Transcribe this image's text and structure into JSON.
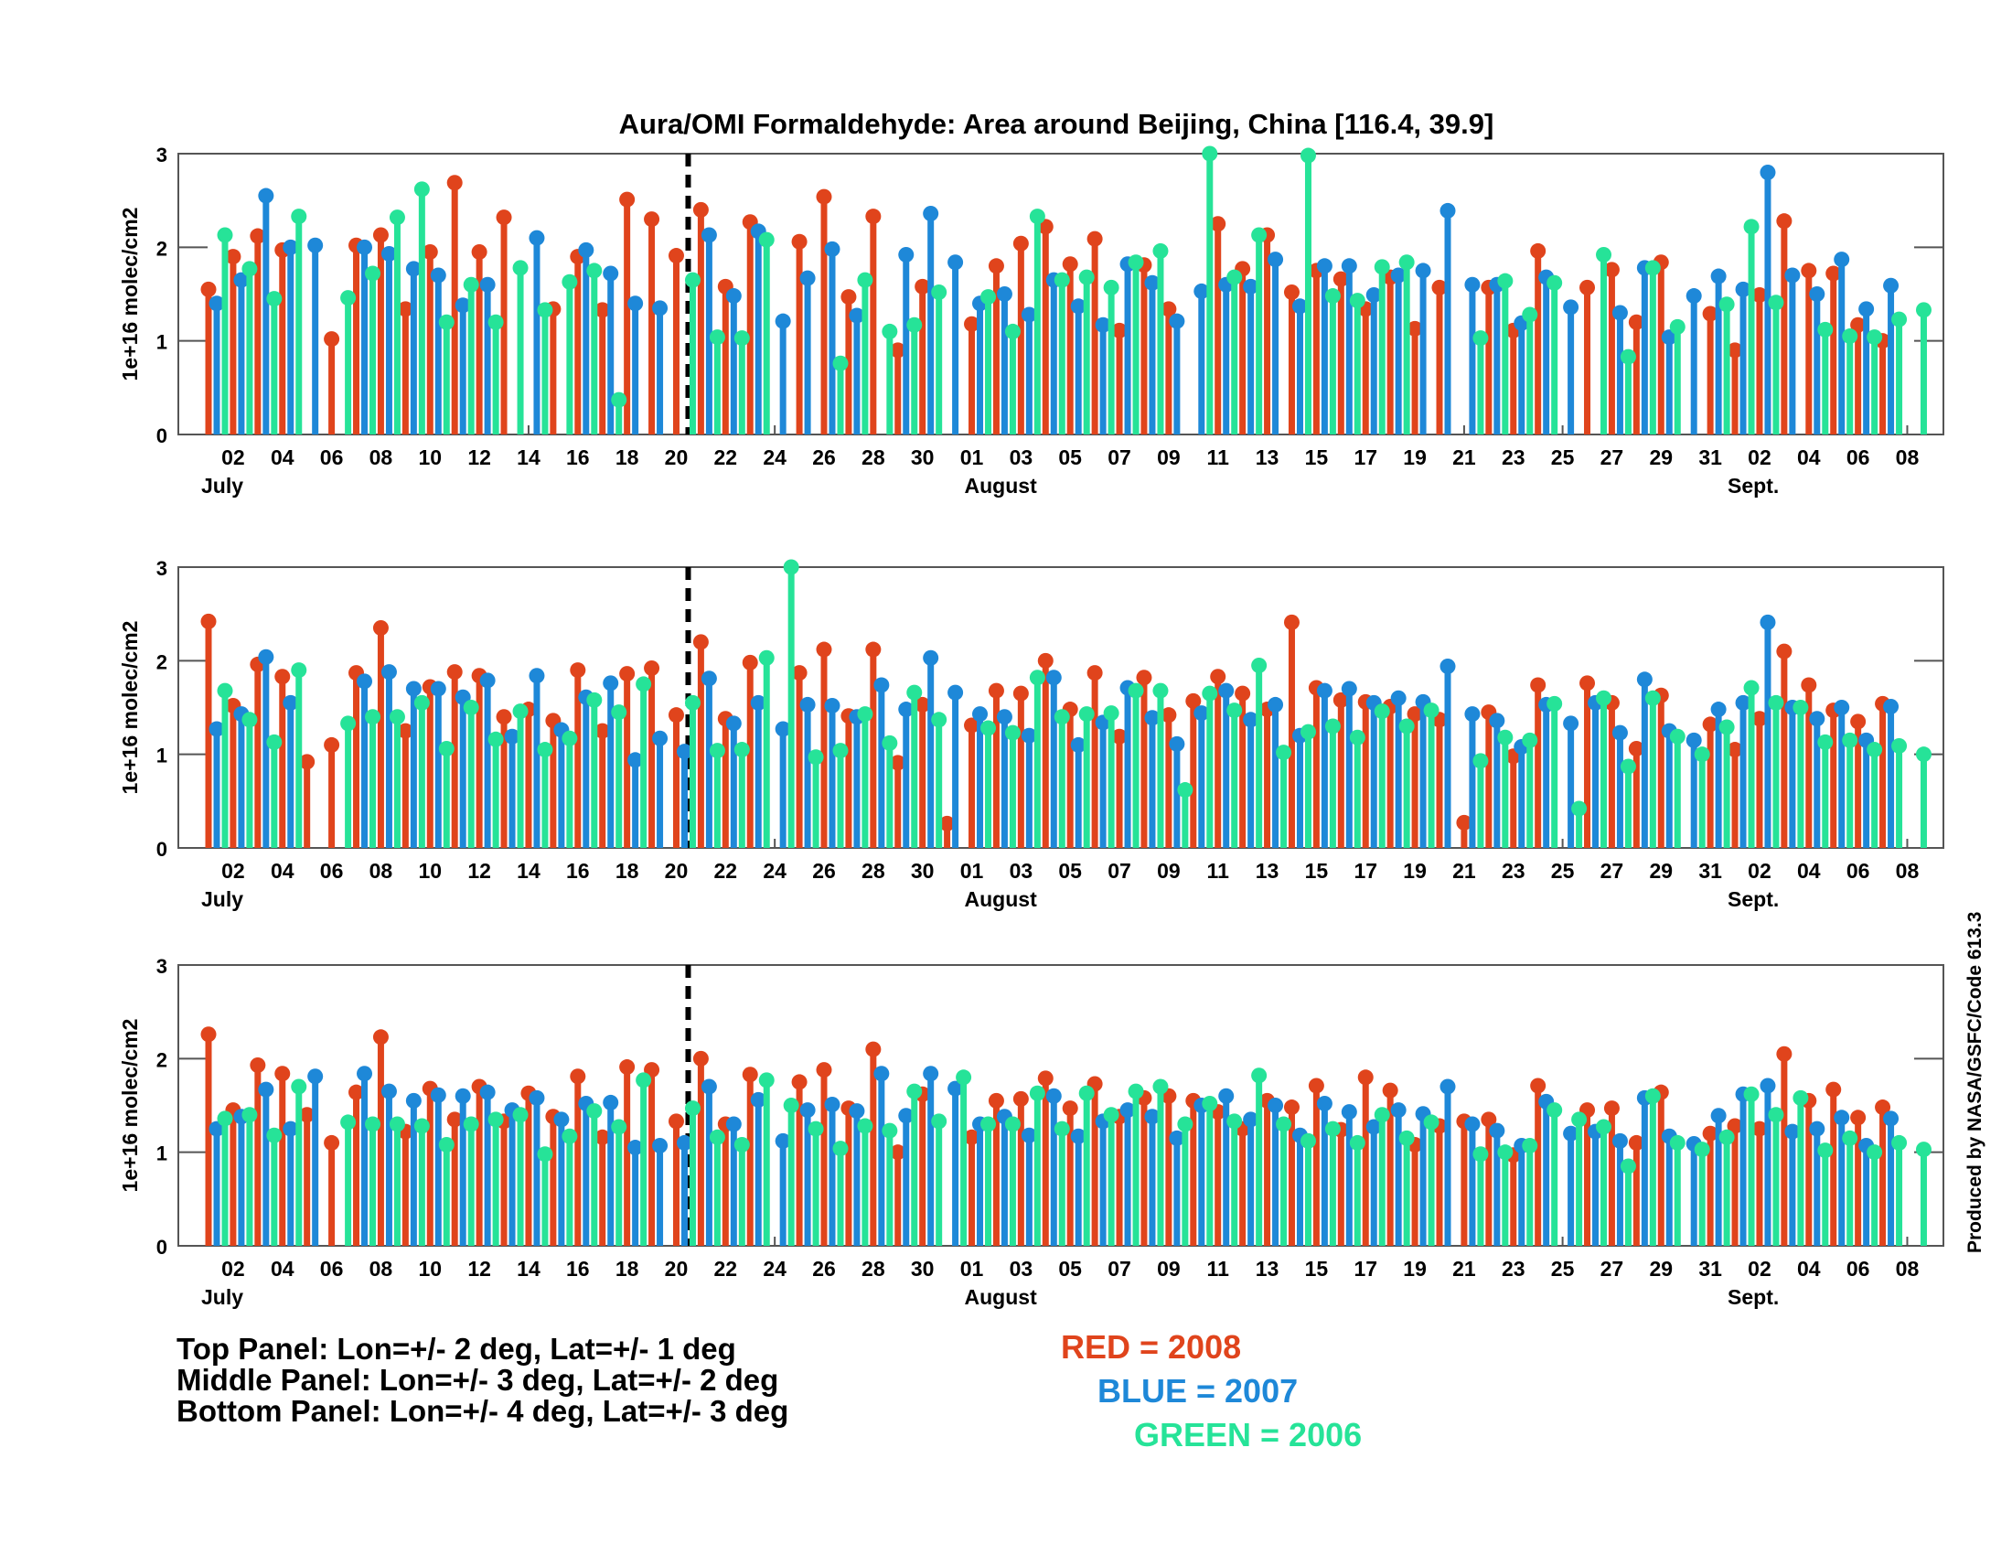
{
  "chart_data": {
    "type": "bar",
    "title": "Aura/OMI Formaldehyde: Area around Beijing, China [116.4, 39.9]",
    "ylabel": "1e+16 molec/cm2",
    "ylim": [
      0,
      3
    ],
    "yticks": [
      "0",
      "1",
      "2",
      "3"
    ],
    "xtick_labels": [
      "02",
      "04",
      "06",
      "08",
      "10",
      "12",
      "14",
      "16",
      "18",
      "20",
      "22",
      "24",
      "26",
      "28",
      "30",
      "01",
      "03",
      "05",
      "07",
      "09",
      "11",
      "13",
      "15",
      "17",
      "19",
      "21",
      "23",
      "25",
      "27",
      "29",
      "31",
      "02",
      "04",
      "06",
      "08"
    ],
    "month_labels": [
      "July",
      "August",
      "Sept."
    ],
    "marker_day": 20,
    "days": [
      "Jul 01",
      "Jul 02",
      "Jul 03",
      "Jul 04",
      "Jul 05",
      "Jul 06",
      "Jul 07",
      "Jul 08",
      "Jul 09",
      "Jul 10",
      "Jul 11",
      "Jul 12",
      "Jul 13",
      "Jul 14",
      "Jul 15",
      "Jul 16",
      "Jul 17",
      "Jul 18",
      "Jul 19",
      "Jul 20",
      "Jul 21",
      "Jul 22",
      "Jul 23",
      "Jul 24",
      "Jul 25",
      "Jul 26",
      "Jul 27",
      "Jul 28",
      "Jul 29",
      "Jul 30",
      "Jul 31",
      "Aug 01",
      "Aug 02",
      "Aug 03",
      "Aug 04",
      "Aug 05",
      "Aug 06",
      "Aug 07",
      "Aug 08",
      "Aug 09",
      "Aug 10",
      "Aug 11",
      "Aug 12",
      "Aug 13",
      "Aug 14",
      "Aug 15",
      "Aug 16",
      "Aug 17",
      "Aug 18",
      "Aug 19",
      "Aug 20",
      "Aug 21",
      "Aug 22",
      "Aug 23",
      "Aug 24",
      "Aug 25",
      "Aug 26",
      "Aug 27",
      "Aug 28",
      "Aug 29",
      "Aug 30",
      "Aug 31",
      "Sep 01",
      "Sep 02",
      "Sep 03",
      "Sep 04",
      "Sep 05",
      "Sep 06",
      "Sep 07",
      "Sep 08"
    ],
    "panels": [
      {
        "name": "Top Panel",
        "series": [
          {
            "name": "2008",
            "color": "#e0441c",
            "values": [
              1.55,
              1.9,
              2.12,
              1.97,
              null,
              1.02,
              2.02,
              2.13,
              1.34,
              1.95,
              2.69,
              1.95,
              2.32,
              null,
              1.34,
              1.9,
              1.33,
              2.51,
              2.3,
              1.91,
              2.4,
              1.58,
              2.27,
              null,
              2.06,
              2.54,
              1.47,
              2.33,
              0.9,
              1.58,
              null,
              1.18,
              1.8,
              2.04,
              2.22,
              1.82,
              2.09,
              1.11,
              1.81,
              1.34,
              null,
              2.25,
              1.77,
              2.13,
              1.52,
              1.75,
              1.66,
              1.34,
              1.68,
              1.13,
              1.57,
              null,
              1.57,
              1.11,
              1.96,
              null,
              1.57,
              1.76,
              1.2,
              1.84,
              null,
              1.29,
              0.9,
              1.49,
              2.28,
              1.75,
              1.72,
              1.17,
              1.0,
              null
            ]
          },
          {
            "name": "2007",
            "color": "#1e88d8",
            "values": [
              1.4,
              1.65,
              2.55,
              2.0,
              2.02,
              null,
              2.0,
              1.93,
              1.77,
              1.7,
              1.38,
              1.6,
              null,
              2.1,
              null,
              1.97,
              1.72,
              1.4,
              1.35,
              null,
              2.13,
              1.48,
              2.17,
              1.21,
              1.67,
              1.98,
              1.27,
              null,
              1.92,
              2.36,
              1.84,
              1.4,
              1.5,
              1.28,
              1.65,
              1.37,
              1.17,
              1.82,
              1.62,
              1.21,
              1.53,
              1.6,
              1.58,
              1.87,
              1.37,
              1.8,
              1.8,
              1.49,
              1.7,
              1.75,
              2.39,
              1.6,
              1.6,
              1.19,
              1.68,
              1.36,
              null,
              1.3,
              1.78,
              1.04,
              1.48,
              1.69,
              1.55,
              2.8,
              1.7,
              1.5,
              1.87,
              1.34,
              1.59,
              null
            ]
          },
          {
            "name": "2006",
            "color": "#26e398",
            "values": [
              2.13,
              1.77,
              1.45,
              2.33,
              null,
              1.46,
              1.72,
              2.32,
              2.62,
              1.2,
              1.6,
              1.2,
              1.78,
              1.33,
              1.63,
              1.75,
              0.37,
              null,
              null,
              1.65,
              1.04,
              1.03,
              2.08,
              null,
              null,
              0.76,
              1.65,
              1.1,
              1.17,
              1.52,
              null,
              1.47,
              1.1,
              2.33,
              1.65,
              1.68,
              1.57,
              1.84,
              1.96,
              null,
              3.0,
              1.68,
              2.13,
              null,
              2.98,
              1.48,
              1.43,
              1.79,
              1.84,
              null,
              null,
              1.03,
              1.64,
              1.28,
              1.62,
              null,
              1.92,
              0.83,
              1.78,
              1.15,
              null,
              1.39,
              2.22,
              1.41,
              null,
              1.12,
              1.05,
              1.04,
              1.23,
              1.33
            ]
          }
        ]
      },
      {
        "name": "Middle Panel",
        "series": [
          {
            "name": "2008",
            "color": "#e0441c",
            "values": [
              2.42,
              1.52,
              1.96,
              1.83,
              0.92,
              1.1,
              1.87,
              2.35,
              1.25,
              1.72,
              1.88,
              1.84,
              1.4,
              1.48,
              1.36,
              1.9,
              1.25,
              1.86,
              1.92,
              1.42,
              2.2,
              1.38,
              1.98,
              null,
              1.87,
              2.12,
              1.41,
              2.12,
              0.91,
              1.53,
              0.26,
              1.31,
              1.68,
              1.65,
              2.0,
              1.48,
              1.87,
              1.19,
              1.82,
              1.42,
              1.57,
              1.83,
              1.65,
              1.48,
              2.41,
              1.71,
              1.58,
              1.56,
              1.51,
              1.43,
              1.37,
              0.27,
              1.45,
              0.98,
              1.74,
              null,
              1.76,
              1.55,
              1.06,
              1.63,
              null,
              1.32,
              1.05,
              1.38,
              2.1,
              1.74,
              1.47,
              1.35,
              1.54,
              null
            ]
          },
          {
            "name": "2007",
            "color": "#1e88d8",
            "values": [
              1.27,
              1.43,
              2.04,
              1.55,
              null,
              null,
              1.78,
              1.88,
              1.7,
              1.7,
              1.61,
              1.79,
              1.19,
              1.84,
              1.26,
              1.61,
              1.76,
              0.94,
              1.17,
              1.03,
              1.81,
              1.33,
              1.55,
              1.27,
              1.53,
              1.52,
              1.4,
              1.74,
              1.48,
              2.03,
              1.66,
              1.43,
              1.4,
              1.2,
              1.82,
              1.1,
              1.34,
              1.71,
              1.39,
              1.11,
              1.44,
              1.68,
              1.37,
              1.53,
              1.2,
              1.68,
              1.7,
              1.55,
              1.6,
              1.56,
              1.94,
              1.43,
              1.36,
              1.08,
              1.53,
              1.33,
              1.55,
              1.23,
              1.8,
              1.25,
              1.15,
              1.48,
              1.55,
              2.41,
              1.5,
              1.38,
              1.5,
              1.15,
              1.51,
              null
            ]
          },
          {
            "name": "2006",
            "color": "#26e398",
            "values": [
              1.68,
              1.37,
              1.13,
              1.9,
              null,
              1.33,
              1.4,
              1.4,
              1.55,
              1.06,
              1.5,
              1.16,
              1.46,
              1.05,
              1.17,
              1.58,
              1.45,
              1.75,
              null,
              1.55,
              1.04,
              1.05,
              2.03,
              3.0,
              0.97,
              1.04,
              1.43,
              1.12,
              1.66,
              1.37,
              null,
              1.28,
              1.23,
              1.82,
              1.4,
              1.43,
              1.44,
              1.68,
              1.68,
              0.62,
              1.65,
              1.47,
              1.95,
              1.02,
              1.24,
              1.3,
              1.18,
              1.46,
              1.3,
              1.47,
              null,
              0.93,
              1.18,
              1.15,
              1.54,
              0.42,
              1.6,
              0.87,
              1.6,
              1.19,
              1.0,
              1.29,
              1.71,
              1.55,
              1.5,
              1.13,
              1.15,
              1.05,
              1.09,
              1.0
            ]
          }
        ]
      },
      {
        "name": "Bottom Panel",
        "series": [
          {
            "name": "2008",
            "color": "#e0441c",
            "values": [
              2.26,
              1.45,
              1.93,
              1.84,
              1.4,
              1.1,
              1.64,
              2.23,
              1.22,
              1.68,
              1.35,
              1.7,
              1.33,
              1.63,
              1.38,
              1.81,
              1.16,
              1.91,
              1.88,
              1.33,
              2.0,
              1.3,
              1.83,
              null,
              1.75,
              1.88,
              1.47,
              2.1,
              1.0,
              1.62,
              null,
              1.16,
              1.55,
              1.57,
              1.79,
              1.47,
              1.73,
              1.38,
              1.58,
              1.6,
              1.55,
              1.43,
              1.25,
              1.55,
              1.48,
              1.71,
              1.24,
              1.8,
              1.66,
              1.08,
              1.28,
              1.33,
              1.35,
              0.97,
              1.71,
              null,
              1.45,
              1.47,
              1.1,
              1.64,
              null,
              1.2,
              1.28,
              1.25,
              2.05,
              1.55,
              1.67,
              1.37,
              1.48,
              null
            ]
          },
          {
            "name": "2007",
            "color": "#1e88d8",
            "values": [
              1.25,
              1.38,
              1.67,
              1.25,
              1.81,
              null,
              1.84,
              1.65,
              1.55,
              1.61,
              1.6,
              1.64,
              1.45,
              1.58,
              1.35,
              1.52,
              1.53,
              1.05,
              1.07,
              1.1,
              1.7,
              1.3,
              1.56,
              1.12,
              1.45,
              1.51,
              1.44,
              1.84,
              1.39,
              1.84,
              1.68,
              1.3,
              1.38,
              1.18,
              1.6,
              1.17,
              1.33,
              1.45,
              1.38,
              1.15,
              1.5,
              1.6,
              1.35,
              1.5,
              1.18,
              1.52,
              1.43,
              1.27,
              1.45,
              1.41,
              1.7,
              1.3,
              1.23,
              1.07,
              1.54,
              1.2,
              1.22,
              1.12,
              1.58,
              1.17,
              1.09,
              1.39,
              1.62,
              1.71,
              1.22,
              1.25,
              1.37,
              1.07,
              1.36,
              null
            ]
          },
          {
            "name": "2006",
            "color": "#26e398",
            "values": [
              1.36,
              1.4,
              1.18,
              1.7,
              null,
              1.32,
              1.3,
              1.3,
              1.28,
              1.08,
              1.3,
              1.35,
              1.4,
              0.98,
              1.17,
              1.44,
              1.27,
              1.77,
              null,
              1.47,
              1.16,
              1.08,
              1.77,
              1.5,
              1.25,
              1.04,
              1.28,
              1.23,
              1.65,
              1.33,
              1.8,
              1.3,
              1.3,
              1.63,
              1.25,
              1.63,
              1.4,
              1.65,
              1.7,
              1.3,
              1.52,
              1.33,
              1.82,
              1.3,
              1.12,
              1.25,
              1.1,
              1.4,
              1.15,
              1.32,
              null,
              0.98,
              1.0,
              1.07,
              1.45,
              1.35,
              1.27,
              0.85,
              1.6,
              1.1,
              1.03,
              1.16,
              1.62,
              1.4,
              1.58,
              1.02,
              1.15,
              1.0,
              1.1,
              1.03
            ]
          }
        ]
      }
    ],
    "legend": [
      "RED = 2008",
      "BLUE = 2007",
      "GREEN = 2006"
    ],
    "annotations": [
      "Top Panel: Lon=+/- 2 deg, Lat=+/- 1 deg",
      "Middle Panel: Lon=+/- 3 deg, Lat=+/- 2 deg",
      "Bottom Panel: Lon=+/- 4 deg, Lat=+/- 3 deg"
    ],
    "credit": "Produced by NASA/GSFC/Code 613.3"
  }
}
